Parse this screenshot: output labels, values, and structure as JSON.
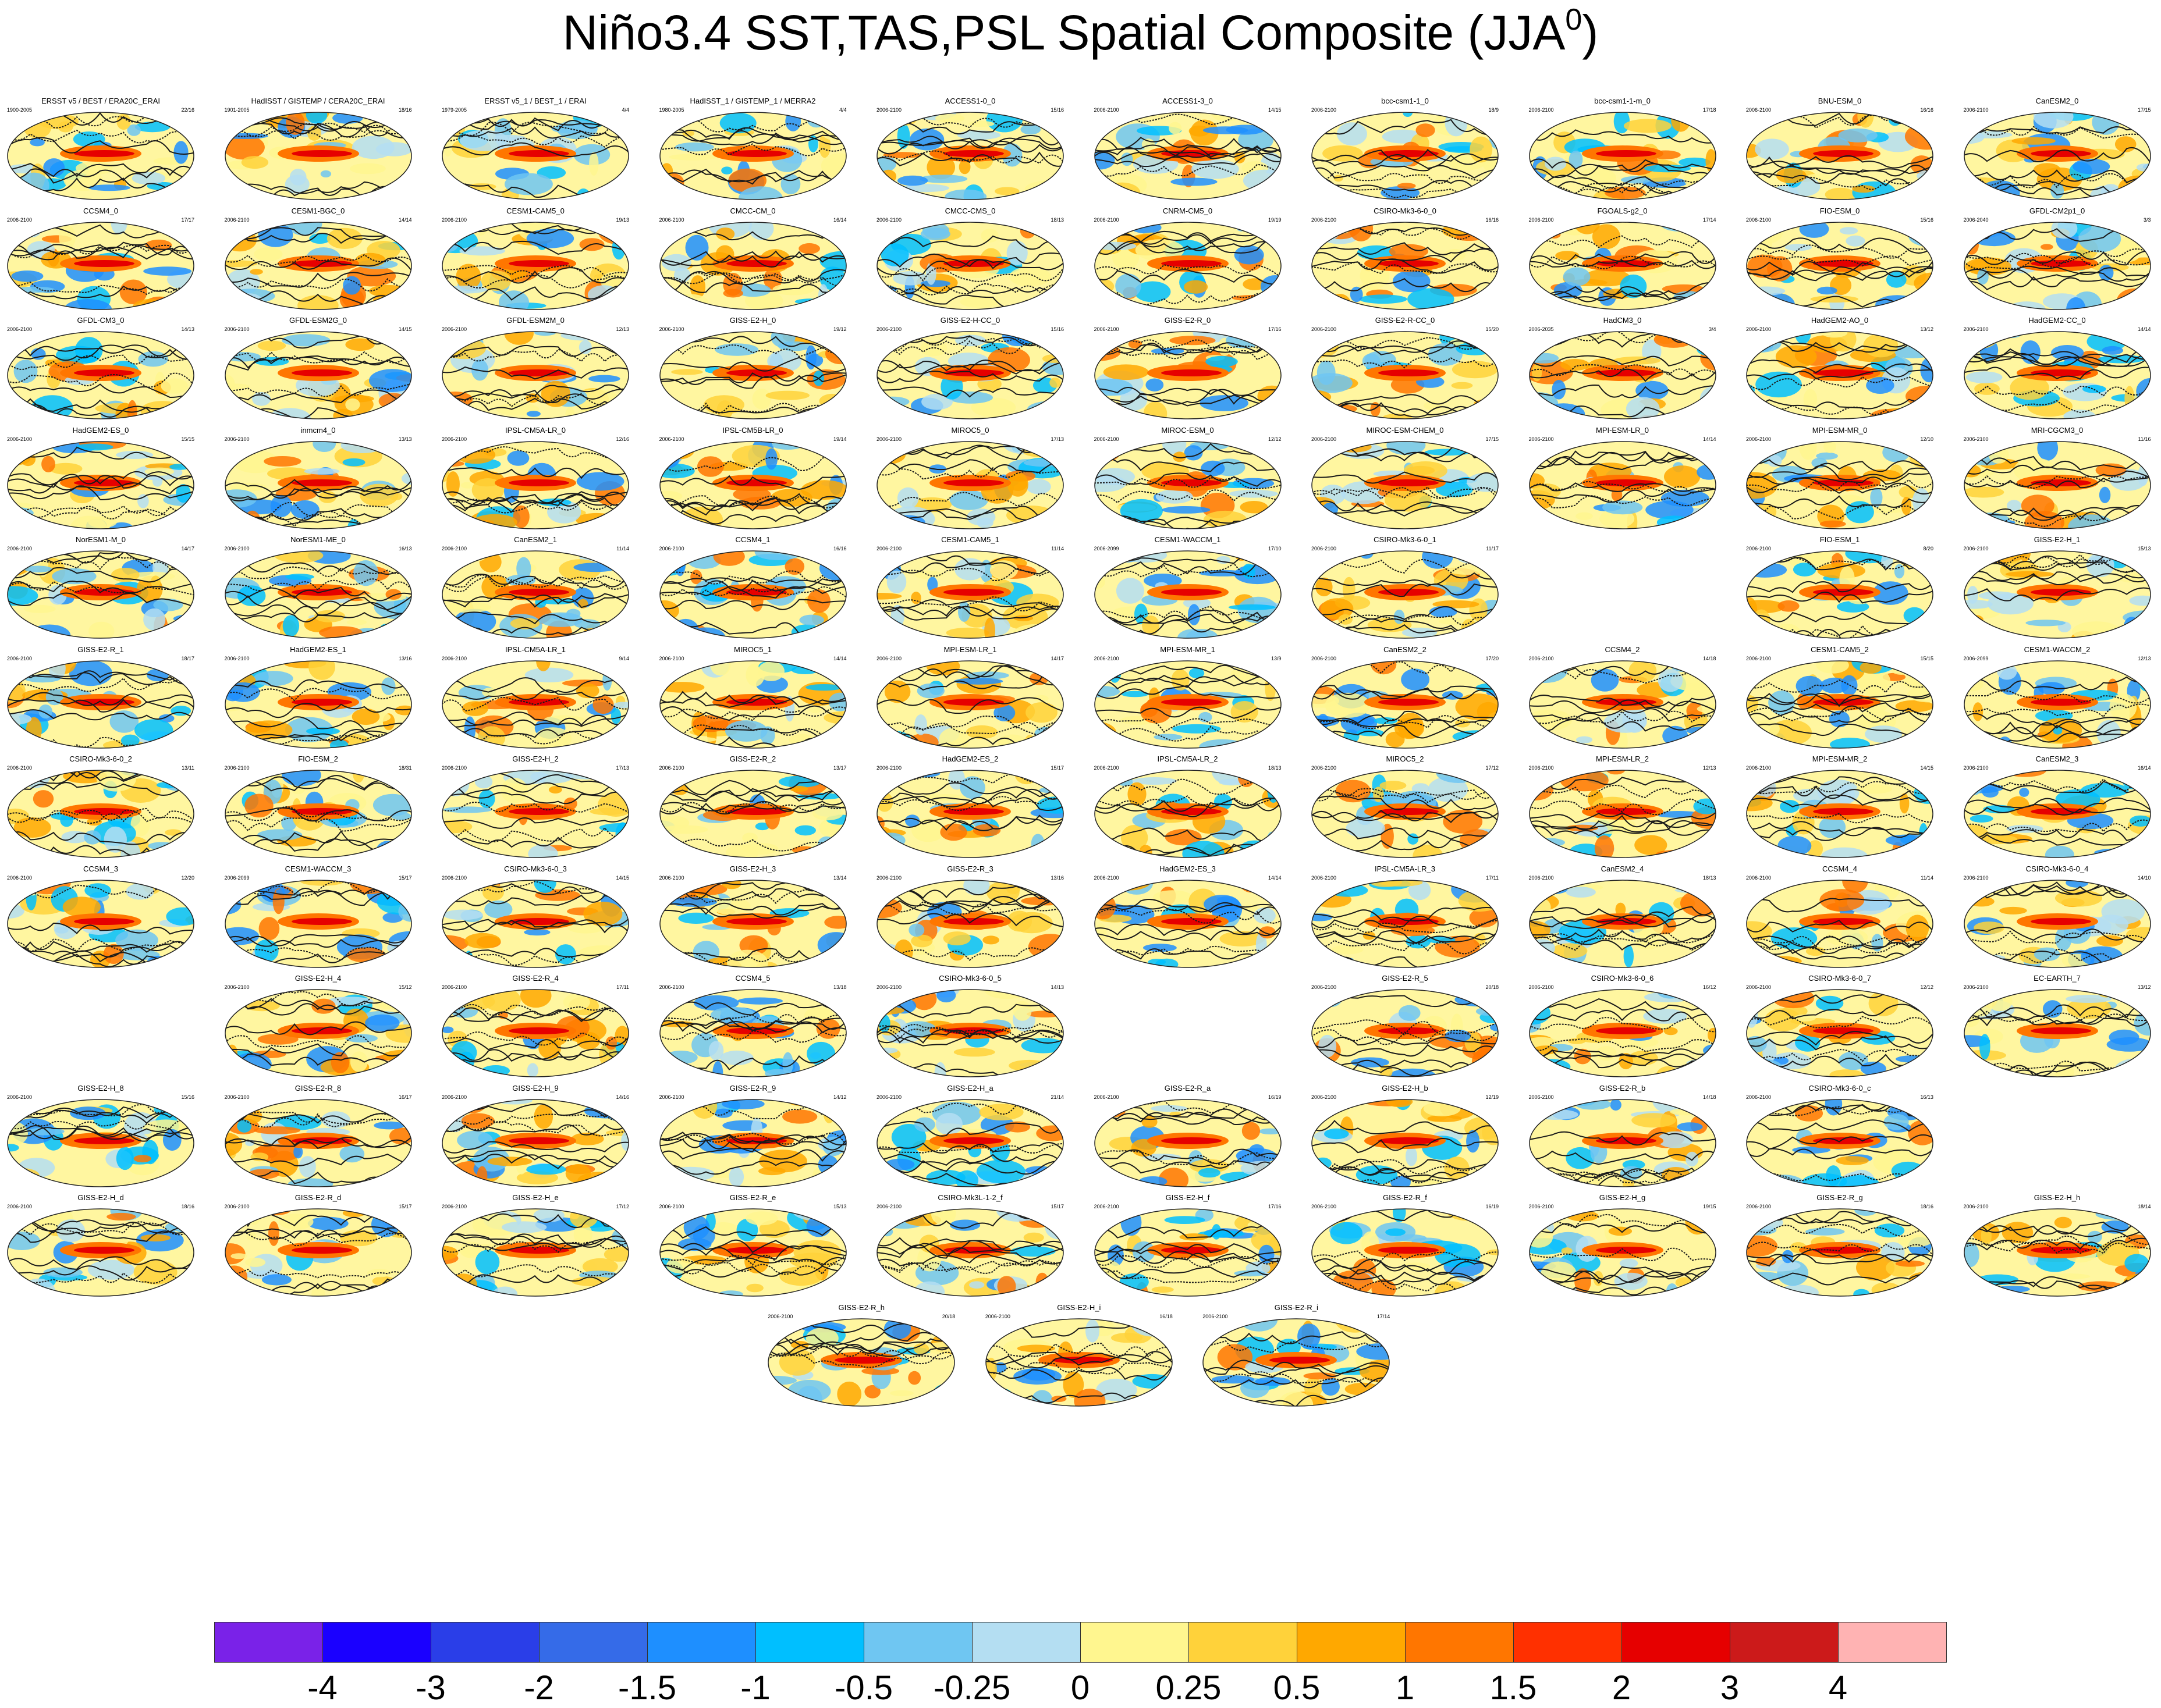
{
  "title": {
    "main": "Niño3.4 SST,TAS,PSL Spatial Composite (JJA",
    "superscript": "0",
    "close": ")"
  },
  "colorbar": {
    "colors": [
      "#7a22e8",
      "#1a00ff",
      "#2a3ee8",
      "#356be8",
      "#1e8fff",
      "#00bfff",
      "#6fc6f2",
      "#b4def2",
      "#fff68f",
      "#ffd23a",
      "#ffa800",
      "#ff7600",
      "#ff3000",
      "#e60000",
      "#cc1a1a",
      "#ffb3b3"
    ],
    "labels": [
      "-4",
      "-3",
      "-2",
      "-1.5",
      "-1",
      "-0.5",
      "-0.25",
      "0",
      "0.25",
      "0.5",
      "1",
      "1.5",
      "2",
      "3",
      "4"
    ]
  },
  "panels": [
    {
      "row": 0,
      "col": 0,
      "title": "ERSST v5 / BEST / ERA20C_ERAI",
      "years": "1900-2005",
      "count": "22/16"
    },
    {
      "row": 0,
      "col": 1,
      "title": "HadISST / GISTEMP / CERA20C_ERAI",
      "years": "1901-2005",
      "count": "18/16"
    },
    {
      "row": 0,
      "col": 2,
      "title": "ERSST v5_1 / BEST_1 / ERAI",
      "years": "1979-2005",
      "count": "4/4"
    },
    {
      "row": 0,
      "col": 3,
      "title": "HadISST_1 / GISTEMP_1 / MERRA2",
      "years": "1980-2005",
      "count": "4/4"
    },
    {
      "row": 0,
      "col": 4,
      "title": "ACCESS1-0_0",
      "years": "2006-2100",
      "count": "15/16"
    },
    {
      "row": 0,
      "col": 5,
      "title": "ACCESS1-3_0",
      "years": "2006-2100",
      "count": "14/15"
    },
    {
      "row": 0,
      "col": 6,
      "title": "bcc-csm1-1_0",
      "years": "2006-2100",
      "count": "18/9"
    },
    {
      "row": 0,
      "col": 7,
      "title": "bcc-csm1-1-m_0",
      "years": "2006-2100",
      "count": "17/18"
    },
    {
      "row": 0,
      "col": 8,
      "title": "BNU-ESM_0",
      "years": "2006-2100",
      "count": "16/16"
    },
    {
      "row": 0,
      "col": 9,
      "title": "CanESM2_0",
      "years": "2006-2100",
      "count": "17/15"
    },
    {
      "row": 1,
      "col": 0,
      "title": "CCSM4_0",
      "years": "2006-2100",
      "count": "17/17"
    },
    {
      "row": 1,
      "col": 1,
      "title": "CESM1-BGC_0",
      "years": "2006-2100",
      "count": "14/14"
    },
    {
      "row": 1,
      "col": 2,
      "title": "CESM1-CAM5_0",
      "years": "2006-2100",
      "count": "19/13"
    },
    {
      "row": 1,
      "col": 3,
      "title": "CMCC-CM_0",
      "years": "2006-2100",
      "count": "16/14"
    },
    {
      "row": 1,
      "col": 4,
      "title": "CMCC-CMS_0",
      "years": "2006-2100",
      "count": "18/13"
    },
    {
      "row": 1,
      "col": 5,
      "title": "CNRM-CM5_0",
      "years": "2006-2100",
      "count": "19/19"
    },
    {
      "row": 1,
      "col": 6,
      "title": "CSIRO-Mk3-6-0_0",
      "years": "2006-2100",
      "count": "16/16"
    },
    {
      "row": 1,
      "col": 7,
      "title": "FGOALS-g2_0",
      "years": "2006-2100",
      "count": "17/14"
    },
    {
      "row": 1,
      "col": 8,
      "title": "FIO-ESM_0",
      "years": "2006-2100",
      "count": "15/16"
    },
    {
      "row": 1,
      "col": 9,
      "title": "GFDL-CM2p1_0",
      "years": "2006-2040",
      "count": "3/3"
    },
    {
      "row": 2,
      "col": 0,
      "title": "GFDL-CM3_0",
      "years": "2006-2100",
      "count": "14/13"
    },
    {
      "row": 2,
      "col": 1,
      "title": "GFDL-ESM2G_0",
      "years": "2006-2100",
      "count": "14/15"
    },
    {
      "row": 2,
      "col": 2,
      "title": "GFDL-ESM2M_0",
      "years": "2006-2100",
      "count": "12/13"
    },
    {
      "row": 2,
      "col": 3,
      "title": "GISS-E2-H_0",
      "years": "2006-2100",
      "count": "19/12"
    },
    {
      "row": 2,
      "col": 4,
      "title": "GISS-E2-H-CC_0",
      "years": "2006-2100",
      "count": "15/16"
    },
    {
      "row": 2,
      "col": 5,
      "title": "GISS-E2-R_0",
      "years": "2006-2100",
      "count": "17/16"
    },
    {
      "row": 2,
      "col": 6,
      "title": "GISS-E2-R-CC_0",
      "years": "2006-2100",
      "count": "15/20"
    },
    {
      "row": 2,
      "col": 7,
      "title": "HadCM3_0",
      "years": "2006-2035",
      "count": "3/4"
    },
    {
      "row": 2,
      "col": 8,
      "title": "HadGEM2-AO_0",
      "years": "2006-2100",
      "count": "13/12"
    },
    {
      "row": 2,
      "col": 9,
      "title": "HadGEM2-CC_0",
      "years": "2006-2100",
      "count": "14/14"
    },
    {
      "row": 3,
      "col": 0,
      "title": "HadGEM2-ES_0",
      "years": "2006-2100",
      "count": "15/15"
    },
    {
      "row": 3,
      "col": 1,
      "title": "inmcm4_0",
      "years": "2006-2100",
      "count": "13/13"
    },
    {
      "row": 3,
      "col": 2,
      "title": "IPSL-CM5A-LR_0",
      "years": "2006-2100",
      "count": "12/16"
    },
    {
      "row": 3,
      "col": 3,
      "title": "IPSL-CM5B-LR_0",
      "years": "2006-2100",
      "count": "19/14"
    },
    {
      "row": 3,
      "col": 4,
      "title": "MIROC5_0",
      "years": "2006-2100",
      "count": "17/13"
    },
    {
      "row": 3,
      "col": 5,
      "title": "MIROC-ESM_0",
      "years": "2006-2100",
      "count": "12/12"
    },
    {
      "row": 3,
      "col": 6,
      "title": "MIROC-ESM-CHEM_0",
      "years": "2006-2100",
      "count": "17/15"
    },
    {
      "row": 3,
      "col": 7,
      "title": "MPI-ESM-LR_0",
      "years": "2006-2100",
      "count": "14/14"
    },
    {
      "row": 3,
      "col": 8,
      "title": "MPI-ESM-MR_0",
      "years": "2006-2100",
      "count": "12/10"
    },
    {
      "row": 3,
      "col": 9,
      "title": "MRI-CGCM3_0",
      "years": "2006-2100",
      "count": "11/16"
    },
    {
      "row": 4,
      "col": 0,
      "title": "NorESM1-M_0",
      "years": "2006-2100",
      "count": "14/17"
    },
    {
      "row": 4,
      "col": 1,
      "title": "NorESM1-ME_0",
      "years": "2006-2100",
      "count": "16/13"
    },
    {
      "row": 4,
      "col": 2,
      "title": "CanESM2_1",
      "years": "2006-2100",
      "count": "11/14"
    },
    {
      "row": 4,
      "col": 3,
      "title": "CCSM4_1",
      "years": "2006-2100",
      "count": "16/16"
    },
    {
      "row": 4,
      "col": 4,
      "title": "CESM1-CAM5_1",
      "years": "2006-2100",
      "count": "11/14"
    },
    {
      "row": 4,
      "col": 5,
      "title": "CESM1-WACCM_1",
      "years": "2006-2099",
      "count": "17/10"
    },
    {
      "row": 4,
      "col": 6,
      "title": "CSIRO-Mk3-6-0_1",
      "years": "2006-2100",
      "count": "11/17"
    },
    {
      "row": 4,
      "col": 8,
      "title": "FIO-ESM_1",
      "years": "2006-2100",
      "count": "8/20"
    },
    {
      "row": 4,
      "col": 9,
      "title": "GISS-E2-H_1",
      "years": "2006-2100",
      "count": "15/13"
    },
    {
      "row": 5,
      "col": 0,
      "title": "GISS-E2-R_1",
      "years": "2006-2100",
      "count": "18/17"
    },
    {
      "row": 5,
      "col": 1,
      "title": "HadGEM2-ES_1",
      "years": "2006-2100",
      "count": "13/16"
    },
    {
      "row": 5,
      "col": 2,
      "title": "IPSL-CM5A-LR_1",
      "years": "2006-2100",
      "count": "9/14"
    },
    {
      "row": 5,
      "col": 3,
      "title": "MIROC5_1",
      "years": "2006-2100",
      "count": "14/14"
    },
    {
      "row": 5,
      "col": 4,
      "title": "MPI-ESM-LR_1",
      "years": "2006-2100",
      "count": "14/17"
    },
    {
      "row": 5,
      "col": 5,
      "title": "MPI-ESM-MR_1",
      "years": "2006-2100",
      "count": "13/9"
    },
    {
      "row": 5,
      "col": 6,
      "title": "CanESM2_2",
      "years": "2006-2100",
      "count": "17/20"
    },
    {
      "row": 5,
      "col": 7,
      "title": "CCSM4_2",
      "years": "2006-2100",
      "count": "14/18"
    },
    {
      "row": 5,
      "col": 8,
      "title": "CESM1-CAM5_2",
      "years": "2006-2100",
      "count": "15/15"
    },
    {
      "row": 5,
      "col": 9,
      "title": "CESM1-WACCM_2",
      "years": "2006-2099",
      "count": "12/13"
    },
    {
      "row": 6,
      "col": 0,
      "title": "CSIRO-Mk3-6-0_2",
      "years": "2006-2100",
      "count": "13/11"
    },
    {
      "row": 6,
      "col": 1,
      "title": "FIO-ESM_2",
      "years": "2006-2100",
      "count": "18/31"
    },
    {
      "row": 6,
      "col": 2,
      "title": "GISS-E2-H_2",
      "years": "2006-2100",
      "count": "17/13"
    },
    {
      "row": 6,
      "col": 3,
      "title": "GISS-E2-R_2",
      "years": "2006-2100",
      "count": "13/17"
    },
    {
      "row": 6,
      "col": 4,
      "title": "HadGEM2-ES_2",
      "years": "2006-2100",
      "count": "15/17"
    },
    {
      "row": 6,
      "col": 5,
      "title": "IPSL-CM5A-LR_2",
      "years": "2006-2100",
      "count": "18/13"
    },
    {
      "row": 6,
      "col": 6,
      "title": "MIROC5_2",
      "years": "2006-2100",
      "count": "17/12"
    },
    {
      "row": 6,
      "col": 7,
      "title": "MPI-ESM-LR_2",
      "years": "2006-2100",
      "count": "12/13"
    },
    {
      "row": 6,
      "col": 8,
      "title": "MPI-ESM-MR_2",
      "years": "2006-2100",
      "count": "14/15"
    },
    {
      "row": 6,
      "col": 9,
      "title": "CanESM2_3",
      "years": "2006-2100",
      "count": "16/14"
    },
    {
      "row": 7,
      "col": 0,
      "title": "CCSM4_3",
      "years": "2006-2100",
      "count": "12/20"
    },
    {
      "row": 7,
      "col": 1,
      "title": "CESM1-WACCM_3",
      "years": "2006-2099",
      "count": "15/17"
    },
    {
      "row": 7,
      "col": 2,
      "title": "CSIRO-Mk3-6-0_3",
      "years": "2006-2100",
      "count": "14/15"
    },
    {
      "row": 7,
      "col": 3,
      "title": "GISS-E2-H_3",
      "years": "2006-2100",
      "count": "13/14"
    },
    {
      "row": 7,
      "col": 4,
      "title": "GISS-E2-R_3",
      "years": "2006-2100",
      "count": "13/16"
    },
    {
      "row": 7,
      "col": 5,
      "title": "HadGEM2-ES_3",
      "years": "2006-2100",
      "count": "14/14"
    },
    {
      "row": 7,
      "col": 6,
      "title": "IPSL-CM5A-LR_3",
      "years": "2006-2100",
      "count": "17/11"
    },
    {
      "row": 7,
      "col": 7,
      "title": "CanESM2_4",
      "years": "2006-2100",
      "count": "18/13"
    },
    {
      "row": 7,
      "col": 8,
      "title": "CCSM4_4",
      "years": "2006-2100",
      "count": "11/14"
    },
    {
      "row": 7,
      "col": 9,
      "title": "CSIRO-Mk3-6-0_4",
      "years": "2006-2100",
      "count": "14/10"
    },
    {
      "row": 8,
      "col": 1,
      "title": "GISS-E2-H_4",
      "years": "2006-2100",
      "count": "15/12"
    },
    {
      "row": 8,
      "col": 2,
      "title": "GISS-E2-R_4",
      "years": "2006-2100",
      "count": "17/11"
    },
    {
      "row": 8,
      "col": 3,
      "title": "CCSM4_5",
      "years": "2006-2100",
      "count": "13/18"
    },
    {
      "row": 8,
      "col": 4,
      "title": "CSIRO-Mk3-6-0_5",
      "years": "2006-2100",
      "count": "14/13"
    },
    {
      "row": 8,
      "col": 6,
      "title": "GISS-E2-R_5",
      "years": "2006-2100",
      "count": "20/18"
    },
    {
      "row": 8,
      "col": 7,
      "title": "CSIRO-Mk3-6-0_6",
      "years": "2006-2100",
      "count": "16/12"
    },
    {
      "row": 8,
      "col": 8,
      "title": "CSIRO-Mk3-6-0_7",
      "years": "2006-2100",
      "count": "12/12"
    },
    {
      "row": 8,
      "col": 9,
      "title": "EC-EARTH_7",
      "years": "2006-2100",
      "count": "13/12"
    },
    {
      "row": 9,
      "col": 0,
      "title": "GISS-E2-H_8",
      "years": "2006-2100",
      "count": "15/16"
    },
    {
      "row": 9,
      "col": 1,
      "title": "GISS-E2-R_8",
      "years": "2006-2100",
      "count": "16/17"
    },
    {
      "row": 9,
      "col": 2,
      "title": "GISS-E2-H_9",
      "years": "2006-2100",
      "count": "14/16"
    },
    {
      "row": 9,
      "col": 3,
      "title": "GISS-E2-R_9",
      "years": "2006-2100",
      "count": "14/12"
    },
    {
      "row": 9,
      "col": 4,
      "title": "GISS-E2-H_a",
      "years": "2006-2100",
      "count": "21/14"
    },
    {
      "row": 9,
      "col": 5,
      "title": "GISS-E2-R_a",
      "years": "2006-2100",
      "count": "16/19"
    },
    {
      "row": 9,
      "col": 6,
      "title": "GISS-E2-H_b",
      "years": "2006-2100",
      "count": "12/19"
    },
    {
      "row": 9,
      "col": 7,
      "title": "GISS-E2-R_b",
      "years": "2006-2100",
      "count": "14/18"
    },
    {
      "row": 9,
      "col": 8,
      "title": "CSIRO-Mk3-6-0_c",
      "years": "2006-2100",
      "count": "16/13"
    },
    {
      "row": 10,
      "col": 0,
      "title": "GISS-E2-H_d",
      "years": "2006-2100",
      "count": "18/16"
    },
    {
      "row": 10,
      "col": 1,
      "title": "GISS-E2-R_d",
      "years": "2006-2100",
      "count": "15/17"
    },
    {
      "row": 10,
      "col": 2,
      "title": "GISS-E2-H_e",
      "years": "2006-2100",
      "count": "17/12"
    },
    {
      "row": 10,
      "col": 3,
      "title": "GISS-E2-R_e",
      "years": "2006-2100",
      "count": "15/13"
    },
    {
      "row": 10,
      "col": 4,
      "title": "CSIRO-Mk3L-1-2_f",
      "years": "2006-2100",
      "count": "15/17"
    },
    {
      "row": 10,
      "col": 5,
      "title": "GISS-E2-H_f",
      "years": "2006-2100",
      "count": "17/16"
    },
    {
      "row": 10,
      "col": 6,
      "title": "GISS-E2-R_f",
      "years": "2006-2100",
      "count": "16/19"
    },
    {
      "row": 10,
      "col": 7,
      "title": "GISS-E2-H_g",
      "years": "2006-2100",
      "count": "19/15"
    },
    {
      "row": 10,
      "col": 8,
      "title": "GISS-E2-R_g",
      "years": "2006-2100",
      "count": "18/16"
    },
    {
      "row": 10,
      "col": 9,
      "title": "GISS-E2-H_h",
      "years": "2006-2100",
      "count": "18/14"
    },
    {
      "row": 11,
      "col": 3.5,
      "title": "GISS-E2-R_h",
      "years": "2006-2100",
      "count": "20/18"
    },
    {
      "row": 11,
      "col": 4.5,
      "title": "GISS-E2-H_i",
      "years": "2006-2100",
      "count": "16/18"
    },
    {
      "row": 11,
      "col": 5.5,
      "title": "GISS-E2-R_i",
      "years": "2006-2100",
      "count": "17/14"
    }
  ]
}
